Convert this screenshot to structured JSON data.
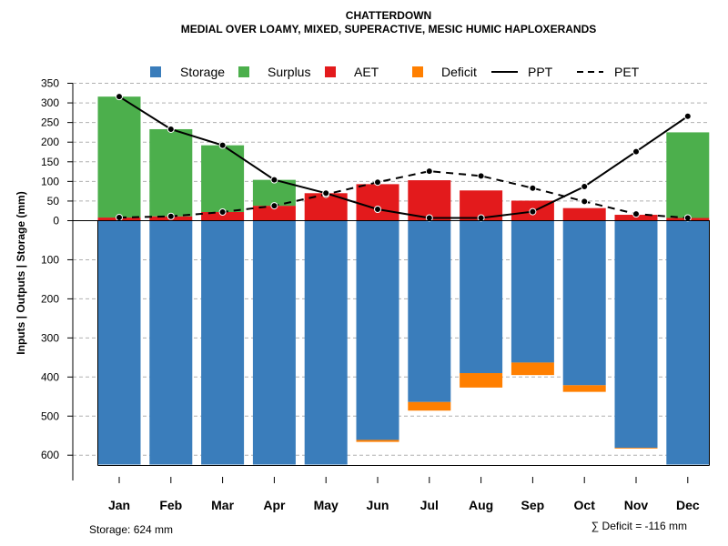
{
  "chart_data": {
    "type": "bar",
    "title": "CHATTERDOWN",
    "subtitle": "MEDIAL OVER LOAMY, MIXED, SUPERACTIVE, MESIC HUMIC HAPLOXERANDS",
    "ylabel": "Inputs | Outputs | Storage     (mm)",
    "categories": [
      "Jan",
      "Feb",
      "Mar",
      "Apr",
      "May",
      "Jun",
      "Jul",
      "Aug",
      "Sep",
      "Oct",
      "Nov",
      "Dec"
    ],
    "ylim_upper": [
      0,
      350
    ],
    "ylim_lower": [
      0,
      624
    ],
    "upper_ticks": [
      "350",
      "300",
      "250",
      "200",
      "150",
      "100",
      "50",
      "0"
    ],
    "lower_ticks": [
      "100",
      "200",
      "300",
      "400",
      "500",
      "600"
    ],
    "colors": {
      "storage": "#3a7dbb",
      "surplus": "#4caf4c",
      "aet": "#e31a1c",
      "deficit": "#ff7f00",
      "line": "#000000",
      "grid": "#b0b0b0"
    },
    "legend": {
      "storage": "Storage",
      "surplus": "Surplus",
      "aet": "AET",
      "deficit": "Deficit",
      "ppt": "PPT",
      "pet": "PET"
    },
    "series": [
      {
        "name": "AET",
        "values": [
          8,
          11,
          22,
          38,
          70,
          93,
          103,
          77,
          51,
          32,
          15,
          7
        ]
      },
      {
        "name": "Surplus",
        "values": [
          308,
          222,
          170,
          66,
          0,
          0,
          0,
          0,
          0,
          0,
          0,
          218
        ]
      },
      {
        "name": "Storage",
        "values": [
          624,
          624,
          624,
          624,
          624,
          561,
          464,
          390,
          363,
          421,
          581,
          624
        ]
      },
      {
        "name": "Deficit",
        "values": [
          0,
          0,
          0,
          0,
          0,
          5,
          22,
          37,
          32,
          17,
          2,
          0
        ]
      },
      {
        "name": "PPT",
        "values": [
          316,
          233,
          192,
          104,
          70,
          29,
          7,
          7,
          23,
          87,
          176,
          266
        ]
      },
      {
        "name": "PET",
        "values": [
          8,
          11,
          22,
          38,
          67,
          98,
          126,
          114,
          83,
          49,
          17,
          7
        ]
      }
    ],
    "storage_note": "Storage: 624 mm",
    "deficit_note": "∑ Deficit = -116 mm"
  }
}
